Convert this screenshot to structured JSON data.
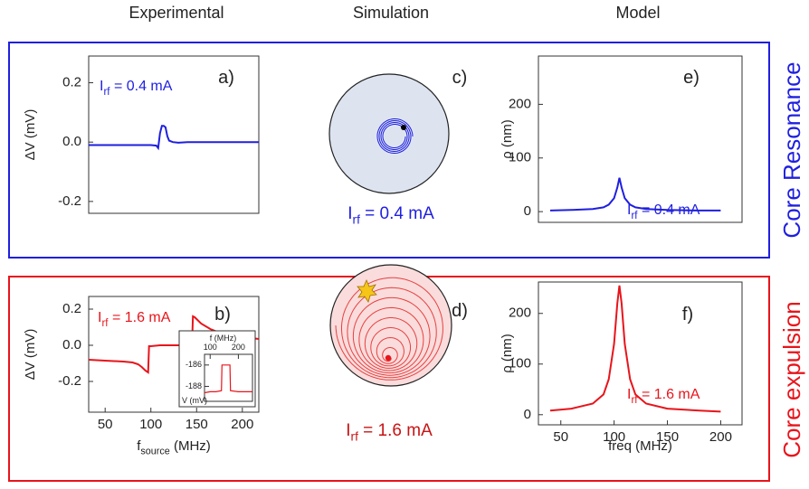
{
  "headers": [
    "Experimental",
    "Simulation",
    "Model"
  ],
  "rows": [
    {
      "label": "Core Resonance",
      "color": "#1f1fe0"
    },
    {
      "label": "Core expulsion",
      "color": "#e8141b"
    }
  ],
  "simulation": [
    {
      "label": "c)",
      "annotation": {
        "main": "I",
        "sub": "rf",
        "rest": " = 0.4 mA"
      },
      "color": "#1f1fe0"
    },
    {
      "label": "d)",
      "annotation": {
        "main": "I",
        "sub": "rf",
        "rest": " = 1.6 mA"
      },
      "color": "#c81414"
    }
  ],
  "chart_data": [
    {
      "type": "line",
      "label": "a)",
      "annotation": {
        "main": "I",
        "sub": "rf",
        "rest": " = 0.4 mA"
      },
      "ylabel": "ΔV (mV)",
      "color": "#1f1fe0",
      "x": [
        32,
        50,
        70,
        90,
        100,
        106,
        108,
        110,
        112,
        114,
        116,
        118,
        120,
        124,
        130,
        140,
        160,
        180,
        200,
        218
      ],
      "values": [
        -0.01,
        -0.01,
        -0.01,
        -0.01,
        -0.01,
        -0.012,
        -0.02,
        0.03,
        0.055,
        0.055,
        0.05,
        0.02,
        0.005,
        0.0,
        -0.002,
        0.0,
        0.0,
        0.0,
        0.0,
        0.0
      ],
      "xlim": [
        32,
        218
      ],
      "ylim": [
        -0.24,
        0.29
      ],
      "yticks": [
        {
          "value": 0.2,
          "label": "0.2"
        },
        {
          "value": 0,
          "label": "0.0"
        },
        {
          "value": -0.2,
          "label": "-0.2"
        }
      ]
    },
    {
      "type": "line",
      "label": "b)",
      "annotation": {
        "main": "I",
        "sub": "rf",
        "rest": " = 1.6 mA"
      },
      "ylabel": "ΔV (mV)",
      "xlabel": {
        "main": "f",
        "sub": "source",
        "rest": " (MHz)"
      },
      "color": "#e8141b",
      "x": [
        32,
        50,
        70,
        80,
        86,
        90,
        94,
        97,
        98,
        100,
        110,
        120,
        130,
        140,
        145,
        146,
        148,
        155,
        165,
        180,
        200,
        218
      ],
      "values": [
        -0.08,
        -0.085,
        -0.09,
        -0.095,
        -0.105,
        -0.12,
        -0.14,
        -0.15,
        -0.005,
        -0.005,
        0.0,
        0.0,
        0.0,
        0.005,
        0.005,
        0.16,
        0.155,
        0.12,
        0.09,
        0.06,
        0.045,
        0.035
      ],
      "xlim": [
        32,
        218
      ],
      "ylim": [
        -0.37,
        0.27
      ],
      "xticks": [
        50,
        100,
        150,
        200
      ],
      "yticks": [
        {
          "value": 0.2,
          "label": "0.2"
        },
        {
          "value": 0,
          "label": "0.0"
        },
        {
          "value": -0.2,
          "label": "-0.2"
        }
      ]
    },
    {
      "type": "line",
      "inset": true,
      "xlabel": "f (MHz)",
      "ylabel": "V (mV)",
      "color": "#e8141b",
      "x": [
        80,
        100,
        120,
        140,
        142,
        170,
        172,
        200,
        250
      ],
      "values": [
        -188.6,
        -188.5,
        -188.5,
        -188.4,
        -186.0,
        -186.0,
        -188.4,
        -188.5,
        -188.5
      ],
      "xlim": [
        80,
        250
      ],
      "ylim": [
        -189.4,
        -185.0
      ],
      "xticks": [
        100,
        200
      ],
      "yticks": [
        -186,
        -188
      ],
      "xtick_position": "top"
    },
    {
      "type": "line",
      "label": "e)",
      "annotation": {
        "main": "I",
        "sub": "rf",
        "rest": " = 0.4 mA"
      },
      "ylabel": "ρ (nm)",
      "color": "#1f1fe0",
      "x": [
        40,
        60,
        80,
        90,
        95,
        100,
        103,
        105,
        107,
        110,
        115,
        120,
        130,
        150,
        180,
        200
      ],
      "values": [
        2,
        3,
        5,
        8,
        13,
        25,
        45,
        63,
        45,
        25,
        13,
        8,
        5,
        3,
        2,
        2
      ],
      "xlim": [
        29,
        220
      ],
      "ylim": [
        -20,
        290
      ],
      "yticks": [
        0,
        100,
        200
      ]
    },
    {
      "type": "line",
      "label": "f)",
      "annotation": {
        "main": "I",
        "sub": "rf",
        "rest": " = 1.6 mA"
      },
      "ylabel": "ρ (nm)",
      "xlabel": "freq (MHz)",
      "color": "#e8141b",
      "x": [
        40,
        60,
        80,
        90,
        95,
        100,
        103,
        105,
        107,
        110,
        115,
        120,
        130,
        150,
        180,
        200
      ],
      "values": [
        8,
        12,
        22,
        40,
        70,
        140,
        220,
        255,
        220,
        140,
        70,
        40,
        22,
        12,
        8,
        6
      ],
      "xlim": [
        29,
        220
      ],
      "ylim": [
        -20,
        262
      ],
      "xticks": [
        50,
        100,
        150,
        200
      ],
      "yticks": [
        0,
        100,
        200
      ]
    }
  ]
}
